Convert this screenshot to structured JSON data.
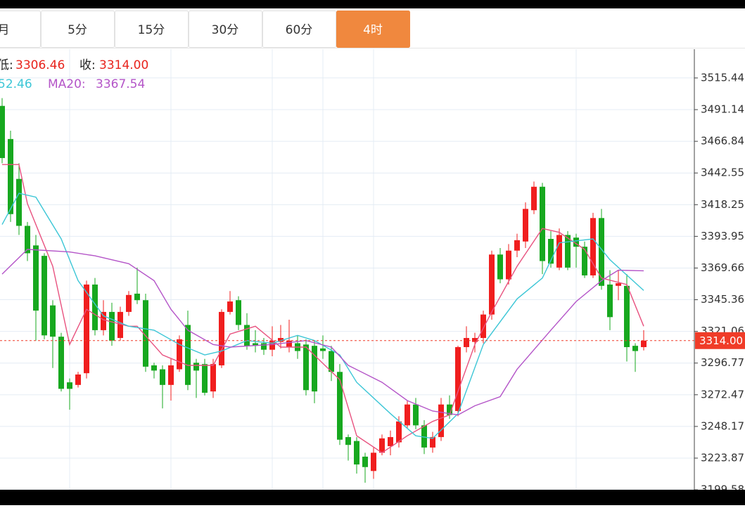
{
  "tabs": [
    "月",
    "5分",
    "15分",
    "30分",
    "60分",
    "4时"
  ],
  "active_tab": 5,
  "header": {
    "low_label": "低:",
    "low": "3306.46",
    "close_label": "收:",
    "ma_partial": "52.46",
    "ma20_label": "MA20:",
    "ma20": "3367.54"
  },
  "chart_data": {
    "type": "candlestick",
    "open": [
      3494,
      3468.6,
      3438,
      3402,
      3387,
      3379,
      3341,
      3317,
      3282,
      3280,
      3289,
      3357,
      3322,
      3336,
      3316,
      3336,
      3350,
      3345,
      3295,
      3292,
      3280,
      3292,
      3326,
      3297,
      3296,
      3275,
      3295,
      3336,
      3345,
      3326,
      3312,
      3312,
      3307,
      3313,
      3309,
      3312,
      3311,
      3310,
      3308,
      3306,
      3290,
      3240,
      3237,
      3225,
      3214,
      3228,
      3233,
      3236,
      3249,
      3265,
      3249,
      3232,
      3240,
      3265,
      3260,
      3309,
      3313,
      3316,
      3334,
      3380,
      3361,
      3383,
      3390,
      3414,
      3432,
      3392,
      3370,
      3395,
      3393,
      3386,
      3364,
      3408,
      3357,
      3356,
      3356,
      3310,
      3309
    ],
    "high": [
      3500,
      3475,
      3450,
      3405,
      3395,
      3381,
      3345,
      3320,
      3285,
      3290,
      3360,
      3362,
      3345,
      3343,
      3340,
      3352,
      3370,
      3350,
      3297,
      3295,
      3300,
      3318,
      3337,
      3300,
      3300,
      3300,
      3338,
      3352,
      3348,
      3335,
      3322,
      3316,
      3325,
      3326,
      3330,
      3318,
      3315,
      3314,
      3318,
      3310,
      3296,
      3242,
      3240,
      3228,
      3232,
      3242,
      3245,
      3256,
      3268,
      3270,
      3253,
      3244,
      3270,
      3272,
      3310,
      3325,
      3320,
      3337,
      3383,
      3385,
      3388,
      3396,
      3420,
      3436,
      3435,
      3398,
      3400,
      3398,
      3396,
      3390,
      3412,
      3415,
      3368,
      3368,
      3365,
      3312,
      3322
    ],
    "low": [
      3450,
      3405,
      3395,
      3375,
      3314,
      3315,
      3293,
      3275,
      3261,
      3278,
      3285,
      3318,
      3318,
      3310,
      3314,
      3333,
      3342,
      3290,
      3285,
      3262,
      3268,
      3290,
      3276,
      3270,
      3272,
      3270,
      3293,
      3334,
      3322,
      3307,
      3305,
      3303,
      3302,
      3308,
      3305,
      3300,
      3272,
      3266,
      3300,
      3283,
      3234,
      3222,
      3212,
      3205,
      3208,
      3226,
      3226,
      3232,
      3247,
      3246,
      3227,
      3228,
      3237,
      3254,
      3256,
      3305,
      3305,
      3312,
      3330,
      3358,
      3357,
      3378,
      3385,
      3411,
      3365,
      3370,
      3368,
      3368,
      3370,
      3362,
      3362,
      3353,
      3322,
      3345,
      3298,
      3290,
      3306.46
    ],
    "close": [
      3454,
      3411,
      3402,
      3381,
      3337,
      3318,
      3317,
      3277,
      3277,
      3288,
      3357,
      3322,
      3336,
      3314,
      3336,
      3349,
      3345,
      3294,
      3291,
      3280,
      3295,
      3315,
      3280,
      3291,
      3274,
      3296,
      3336,
      3344,
      3326,
      3310,
      3310,
      3307,
      3314,
      3316,
      3314,
      3306,
      3276,
      3275,
      3306,
      3290,
      3238,
      3234,
      3219,
      3217,
      3228,
      3239,
      3240,
      3252,
      3265,
      3249,
      3232,
      3240,
      3265,
      3257,
      3309,
      3316,
      3316,
      3334,
      3380,
      3361,
      3383,
      3391,
      3415,
      3432,
      3375,
      3373,
      3395,
      3370,
      3386,
      3364,
      3408,
      3356,
      3332,
      3358,
      3309,
      3306,
      3314
    ],
    "up_color": "#f01e1e",
    "down_color": "#17a81f",
    "ylim": [
      3200.7,
      3537.5
    ],
    "yticks": [
      3515.44,
      3491.14,
      3466.84,
      3442.55,
      3418.25,
      3393.95,
      3369.66,
      3345.36,
      3321.06,
      3296.77,
      3272.47,
      3248.17,
      3223.87,
      3199.58
    ],
    "grid": true,
    "series": [
      {
        "color": "#e8527f",
        "x": [
          0,
          2,
          3,
          6,
          8,
          10,
          12,
          15,
          16,
          19,
          22,
          25,
          27,
          30,
          33,
          36,
          40,
          42,
          45,
          48,
          51,
          53,
          56,
          58,
          61,
          64,
          66,
          69,
          71,
          74,
          76
        ],
        "values": [
          3449,
          3449,
          3419,
          3371,
          3311,
          3338,
          3330,
          3325,
          3325,
          3303,
          3295,
          3295,
          3319,
          3325,
          3309,
          3309,
          3284,
          3241,
          3228,
          3241,
          3252,
          3257,
          3311,
          3336,
          3371,
          3400,
          3397,
          3384,
          3362,
          3357,
          3325
        ]
      },
      {
        "color": "#3cc6d6",
        "x": [
          0,
          2,
          4,
          7,
          9,
          12,
          15,
          18,
          21,
          24,
          26,
          29,
          32,
          35,
          37,
          40,
          42,
          46,
          49,
          51,
          54,
          57,
          61,
          64,
          66,
          70,
          72,
          76
        ],
        "values": [
          3403,
          3427,
          3424,
          3392,
          3360,
          3333,
          3325,
          3322,
          3311,
          3303,
          3306,
          3314,
          3312,
          3318,
          3314,
          3303,
          3282,
          3258,
          3241,
          3239,
          3258,
          3311,
          3346,
          3362,
          3389,
          3392,
          3376,
          3352.46
        ]
      },
      {
        "name": "MA20",
        "color": "#b455c8",
        "x": [
          0,
          3,
          8,
          11,
          15,
          18,
          20,
          22,
          25,
          27,
          32,
          36,
          39,
          41,
          45,
          48,
          51,
          54,
          56,
          59,
          61,
          65,
          68,
          71,
          73,
          76
        ],
        "values": [
          3365,
          3384,
          3382,
          3379,
          3373,
          3360,
          3338,
          3322,
          3311,
          3309,
          3311,
          3314,
          3309,
          3295,
          3282,
          3268,
          3260,
          3257,
          3264,
          3271,
          3292,
          3322,
          3344,
          3360,
          3368,
          3367.54
        ]
      }
    ],
    "last_price": {
      "value": 3314,
      "label": "3314.00"
    },
    "last_price_color": "#f03c28"
  }
}
